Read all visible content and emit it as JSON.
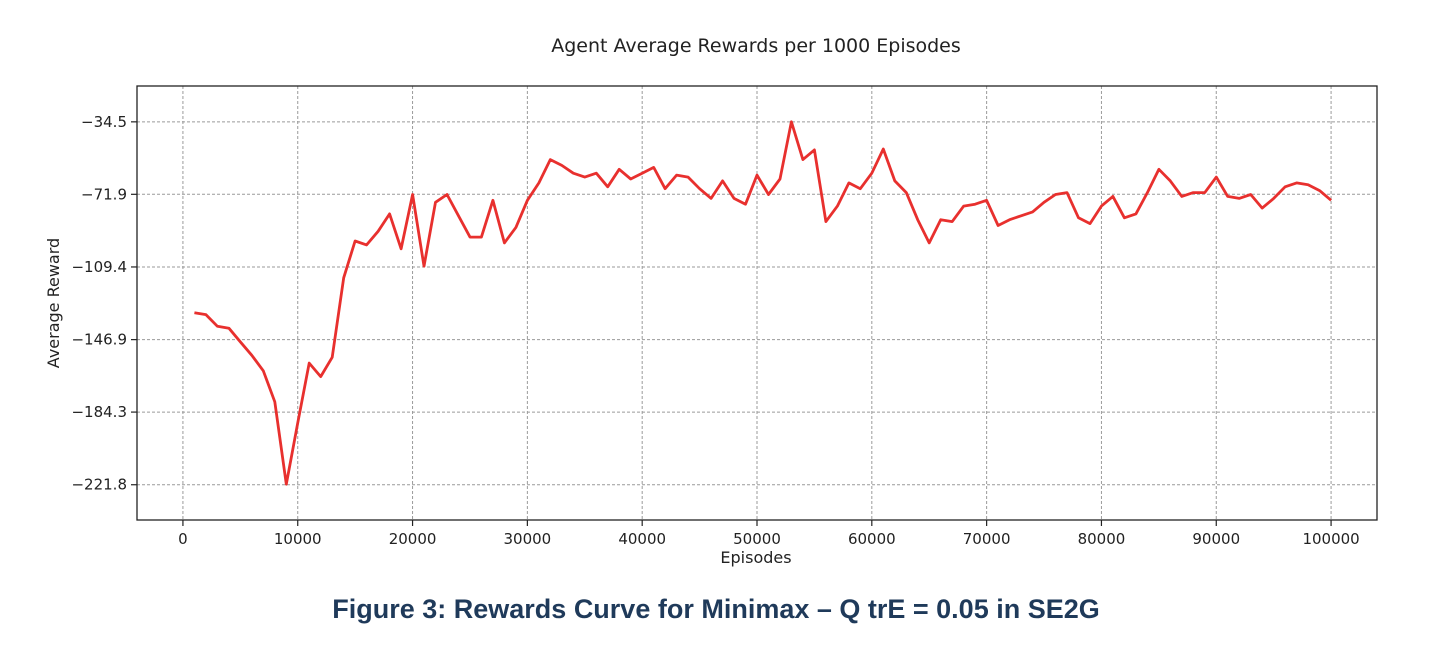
{
  "caption": "Figure 3: Rewards Curve for Minimax – Q trE = 0.05 in SE2G",
  "chart_data": {
    "type": "line",
    "title": "Agent Average Rewards per 1000 Episodes",
    "xlabel": "Episodes",
    "ylabel": "Average Reward",
    "xlim": [
      -4000,
      104000
    ],
    "ylim": [
      -240,
      -16
    ],
    "xticks": [
      0,
      10000,
      20000,
      30000,
      40000,
      50000,
      60000,
      70000,
      80000,
      90000,
      100000
    ],
    "xtick_labels": [
      "0",
      "10000",
      "20000",
      "30000",
      "40000",
      "50000",
      "60000",
      "70000",
      "80000",
      "90000",
      "100000"
    ],
    "yticks": [
      -34.5,
      -71.9,
      -109.4,
      -146.9,
      -184.3,
      -221.8
    ],
    "ytick_labels": [
      "−34.5",
      "−71.9",
      "−109.4",
      "−146.9",
      "−184.3",
      "−221.8"
    ],
    "grid": true,
    "color": "#e8302e",
    "series": [
      {
        "x": [
          1000,
          2000,
          3000,
          4000,
          5000,
          6000,
          7000,
          8000,
          9000,
          10000,
          11000,
          12000,
          13000,
          14000,
          15000,
          16000,
          17000,
          18000,
          19000,
          20000,
          21000,
          22000,
          23000,
          24000,
          25000,
          26000,
          27000,
          28000,
          29000,
          30000,
          31000,
          32000,
          33000,
          34000,
          35000,
          36000,
          37000,
          38000,
          39000,
          40000,
          41000,
          42000,
          43000,
          44000,
          45000,
          46000,
          47000,
          48000,
          49000,
          50000,
          51000,
          52000,
          53000,
          54000,
          55000,
          56000,
          57000,
          58000,
          59000,
          60000,
          61000,
          62000,
          63000,
          64000,
          65000,
          66000,
          67000,
          68000,
          69000,
          70000,
          71000,
          72000,
          73000,
          74000,
          75000,
          76000,
          77000,
          78000,
          79000,
          80000,
          81000,
          82000,
          83000,
          84000,
          85000,
          86000,
          87000,
          88000,
          89000,
          90000,
          91000,
          92000,
          93000,
          94000,
          95000,
          96000,
          97000,
          98000,
          99000,
          100000
        ],
        "values": [
          -133,
          -134,
          -140,
          -141,
          -148,
          -155,
          -163,
          -179,
          -221.5,
          -190,
          -159,
          -166,
          -156,
          -115,
          -96,
          -98,
          -91,
          -82,
          -100,
          -72,
          -109,
          -76,
          -72,
          -83,
          -94,
          -94,
          -75,
          -97,
          -89,
          -75,
          -66,
          -54,
          -57,
          -61,
          -63,
          -61,
          -68,
          -59,
          -64,
          -61,
          -58,
          -69,
          -62,
          -63,
          -69,
          -74,
          -65,
          -74,
          -77,
          -62,
          -72,
          -64,
          -34.5,
          -54,
          -49,
          -86,
          -78,
          -66,
          -69,
          -61,
          -48.5,
          -65,
          -71,
          -85,
          -97,
          -85,
          -86,
          -78,
          -77,
          -75,
          -88,
          -85,
          -83,
          -81,
          -76,
          -72,
          -71,
          -84,
          -87,
          -78,
          -73,
          -84,
          -82,
          -71,
          -59,
          -65,
          -73,
          -71,
          -71,
          -63,
          -73,
          -74,
          -72,
          -79,
          -74,
          -68,
          -66,
          -67,
          -70,
          -75
        ]
      }
    ]
  }
}
